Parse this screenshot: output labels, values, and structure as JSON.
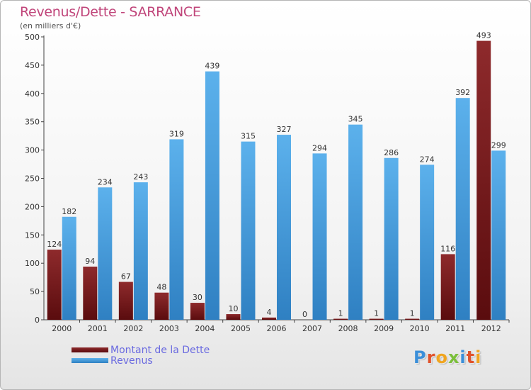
{
  "title": "Revenus/Dette - SARRANCE",
  "subtitle": "(en milliers d'€)",
  "logo": "Proxiti",
  "colors": {
    "dette": "#7a1a1c",
    "revenus": "#4aa1e0",
    "title": "#c0457a"
  },
  "chart_data": {
    "type": "bar",
    "categories": [
      "2000",
      "2001",
      "2002",
      "2003",
      "2004",
      "2005",
      "2006",
      "2007",
      "2008",
      "2009",
      "2010",
      "2011",
      "2012"
    ],
    "series": [
      {
        "name": "Montant de la Dette",
        "values": [
          124,
          94,
          67,
          48,
          30,
          10,
          4,
          0,
          1,
          1,
          1,
          116,
          493
        ]
      },
      {
        "name": "Revenus",
        "values": [
          182,
          234,
          243,
          319,
          439,
          315,
          327,
          294,
          345,
          286,
          274,
          392,
          299
        ]
      }
    ],
    "ylim": [
      0,
      500
    ],
    "yticks": [
      0,
      50,
      100,
      150,
      200,
      250,
      300,
      350,
      400,
      450,
      500
    ],
    "title": "Revenus/Dette - SARRANCE",
    "ylabel": "(en milliers d'€)",
    "grid": false,
    "legend": "bottom-left"
  }
}
